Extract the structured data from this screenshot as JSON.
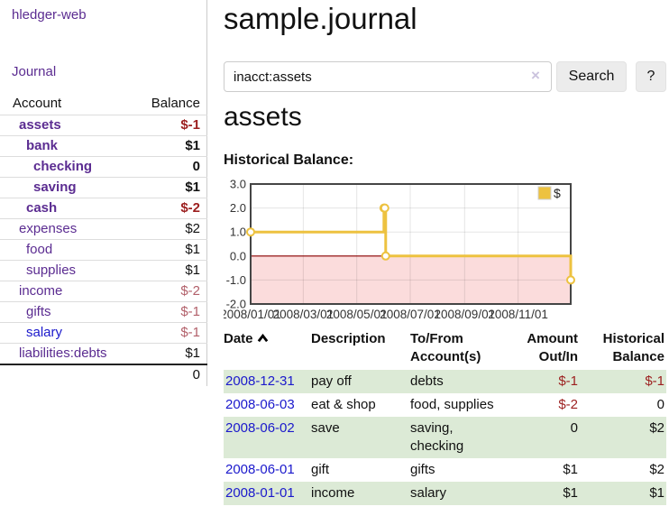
{
  "colors": {
    "purple_link": "#5b2c91",
    "blue_link": "#1b19cc",
    "negative": "#9c1f1f",
    "negative_muted": "#b2606a",
    "row_stripe_green": "#dcead6",
    "chart_line_gold": "#edc240",
    "chart_negative_fill": "#fbdcdc",
    "chart_zero_line": "#8b0000"
  },
  "sidebar": {
    "brand": "hledger-web",
    "nav_journal": "Journal",
    "accounts_table": {
      "columns": [
        "Account",
        "Balance"
      ],
      "rows": [
        {
          "account": "assets",
          "balance": "$-1",
          "depth": 1,
          "bold": true,
          "balance_tone": "negative",
          "link_tone": "purple"
        },
        {
          "account": "bank",
          "balance": "$1",
          "depth": 2,
          "bold": true,
          "balance_tone": "normal",
          "link_tone": "purple"
        },
        {
          "account": "checking",
          "balance": "0",
          "depth": 3,
          "bold": true,
          "balance_tone": "normal",
          "link_tone": "purple"
        },
        {
          "account": "saving",
          "balance": "$1",
          "depth": 3,
          "bold": true,
          "balance_tone": "normal",
          "link_tone": "purple"
        },
        {
          "account": "cash",
          "balance": "$-2",
          "depth": 2,
          "bold": true,
          "balance_tone": "negative",
          "link_tone": "purple"
        },
        {
          "account": "expenses",
          "balance": "$2",
          "depth": 1,
          "bold": false,
          "balance_tone": "normal",
          "link_tone": "purple"
        },
        {
          "account": "food",
          "balance": "$1",
          "depth": 2,
          "bold": false,
          "balance_tone": "normal",
          "link_tone": "purple"
        },
        {
          "account": "supplies",
          "balance": "$1",
          "depth": 2,
          "bold": false,
          "balance_tone": "normal",
          "link_tone": "purple"
        },
        {
          "account": "income",
          "balance": "$-2",
          "depth": 1,
          "bold": false,
          "balance_tone": "negative_muted",
          "link_tone": "purple"
        },
        {
          "account": "gifts",
          "balance": "$-1",
          "depth": 2,
          "bold": false,
          "balance_tone": "negative_muted",
          "link_tone": "purple"
        },
        {
          "account": "salary",
          "balance": "$-1",
          "depth": 2,
          "bold": false,
          "balance_tone": "negative_muted",
          "link_tone": "blue"
        },
        {
          "account": "liabilities:debts",
          "balance": "$1",
          "depth": 1,
          "bold": false,
          "balance_tone": "normal",
          "link_tone": "purple"
        }
      ],
      "total": "0"
    }
  },
  "main": {
    "page_title": "sample.journal",
    "search": {
      "value": "inacct:assets",
      "clear_icon": "×",
      "button_label": "Search",
      "help_label": "?"
    },
    "account_heading": "assets",
    "chart_heading": "Historical Balance:"
  },
  "chart_data": {
    "type": "line",
    "step": true,
    "title": "Historical Balance",
    "series": [
      {
        "name": "$",
        "color": "#edc240",
        "points": [
          [
            "2008-01-01",
            1
          ],
          [
            "2008-06-01",
            2
          ],
          [
            "2008-06-02",
            2
          ],
          [
            "2008-06-03",
            0
          ],
          [
            "2008-12-31",
            -1
          ]
        ]
      }
    ],
    "x_tick_labels": [
      "2008/01/01",
      "2008/03/01",
      "2008/05/01",
      "2008/07/01",
      "2008/09/01",
      "2008/11/01"
    ],
    "y_tick_labels": [
      "3.0",
      "2.0",
      "1.0",
      "0.0",
      "-1.0",
      "-2.0"
    ],
    "xlim": [
      "2008-01-01",
      "2008-12-31"
    ],
    "ylim": [
      -2,
      3
    ],
    "grid": true,
    "legend": {
      "label": "$",
      "position": "top-right"
    },
    "negative_region_shaded": true
  },
  "register": {
    "headers": {
      "date": "Date",
      "description": "Description",
      "accounts": "To/From Account(s)",
      "amount": "Amount Out/In",
      "balance": "Historical Balance"
    },
    "sort_icon": "chevron-up",
    "rows": [
      {
        "date": "2008-12-31",
        "description": "pay off",
        "accounts": "debts",
        "amount": "$-1",
        "balance": "$-1",
        "amount_tone": "negative",
        "balance_tone": "negative",
        "shaded": true
      },
      {
        "date": "2008-06-03",
        "description": "eat & shop",
        "accounts": "food, supplies",
        "amount": "$-2",
        "balance": "0",
        "amount_tone": "negative",
        "balance_tone": "normal",
        "shaded": false
      },
      {
        "date": "2008-06-02",
        "description": "save",
        "accounts": "saving, checking",
        "amount": "0",
        "balance": "$2",
        "amount_tone": "normal",
        "balance_tone": "normal",
        "shaded": true
      },
      {
        "date": "2008-06-01",
        "description": "gift",
        "accounts": "gifts",
        "amount": "$1",
        "balance": "$2",
        "amount_tone": "normal",
        "balance_tone": "normal",
        "shaded": false
      },
      {
        "date": "2008-01-01",
        "description": "income",
        "accounts": "salary",
        "amount": "$1",
        "balance": "$1",
        "amount_tone": "normal",
        "balance_tone": "normal",
        "shaded": true
      }
    ]
  }
}
